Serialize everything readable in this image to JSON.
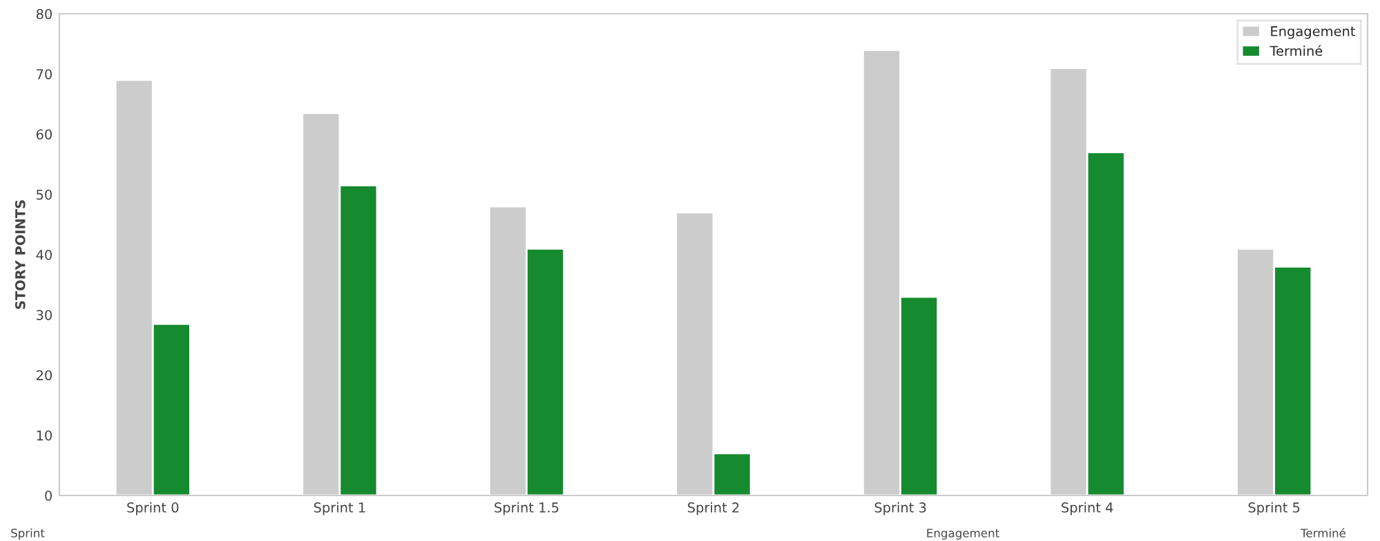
{
  "chart_data": {
    "type": "bar",
    "ylabel": "STORY POINTS",
    "categories": [
      "Sprint 0",
      "Sprint 1",
      "Sprint 1.5",
      "Sprint 2",
      "Sprint 3",
      "Sprint 4",
      "Sprint 5"
    ],
    "series": [
      {
        "name": "Engagement",
        "color": "#cccccc",
        "values": [
          69,
          63.5,
          48,
          47,
          74,
          71,
          41
        ]
      },
      {
        "name": "Terminé",
        "color": "#168a2e",
        "values": [
          28.5,
          51.5,
          41,
          7,
          33,
          57,
          38
        ]
      }
    ],
    "ylim": [
      0,
      80
    ],
    "yticks": [
      0,
      10,
      20,
      30,
      40,
      50,
      60,
      70,
      80
    ],
    "grid": false,
    "legend": "top right",
    "annotations": [
      "Sprint",
      "Engagement",
      "Terminé"
    ]
  }
}
